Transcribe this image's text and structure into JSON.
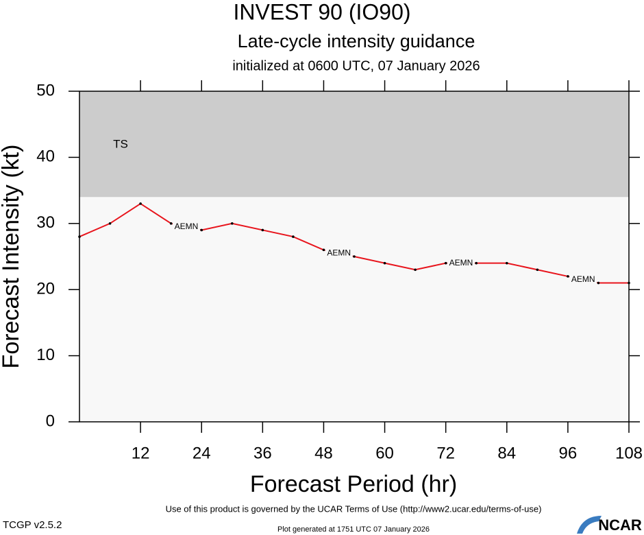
{
  "chart_data": {
    "type": "line",
    "title": "INVEST 90 (IO90)",
    "subtitle": "Late-cycle intensity guidance",
    "initialized": "initialized at 0600 UTC, 07 January 2026",
    "x_label": "Forecast Period (hr)",
    "y_label": "Forecast Intensity (kt)",
    "x": [
      0,
      6,
      12,
      18,
      24,
      30,
      36,
      42,
      48,
      54,
      60,
      66,
      72,
      78,
      84,
      90,
      96,
      102,
      108
    ],
    "series": [
      {
        "name": "AEMN",
        "color": "#e8141c",
        "values": [
          28,
          30,
          33,
          30,
          29,
          30,
          29,
          28,
          26,
          25,
          24,
          23,
          24,
          24,
          24,
          23,
          22,
          21,
          21
        ]
      }
    ],
    "bands": [
      {
        "label": "TS",
        "from": 34,
        "to": 50,
        "color": "#cccccc"
      }
    ],
    "xlim": [
      0,
      108
    ],
    "xticks": [
      12,
      24,
      36,
      48,
      60,
      72,
      84,
      96,
      108
    ],
    "ylim": [
      0,
      50
    ],
    "yticks": [
      0,
      10,
      20,
      30,
      40,
      50
    ]
  },
  "footer": {
    "terms": "Use of this product is governed by the UCAR Terms of Use (http://www2.ucar.edu/terms-of-use)",
    "version": "TCGP v2.5.2",
    "generated": "Plot generated at 1751 UTC   07 January 2026",
    "logo": "NCAR"
  }
}
